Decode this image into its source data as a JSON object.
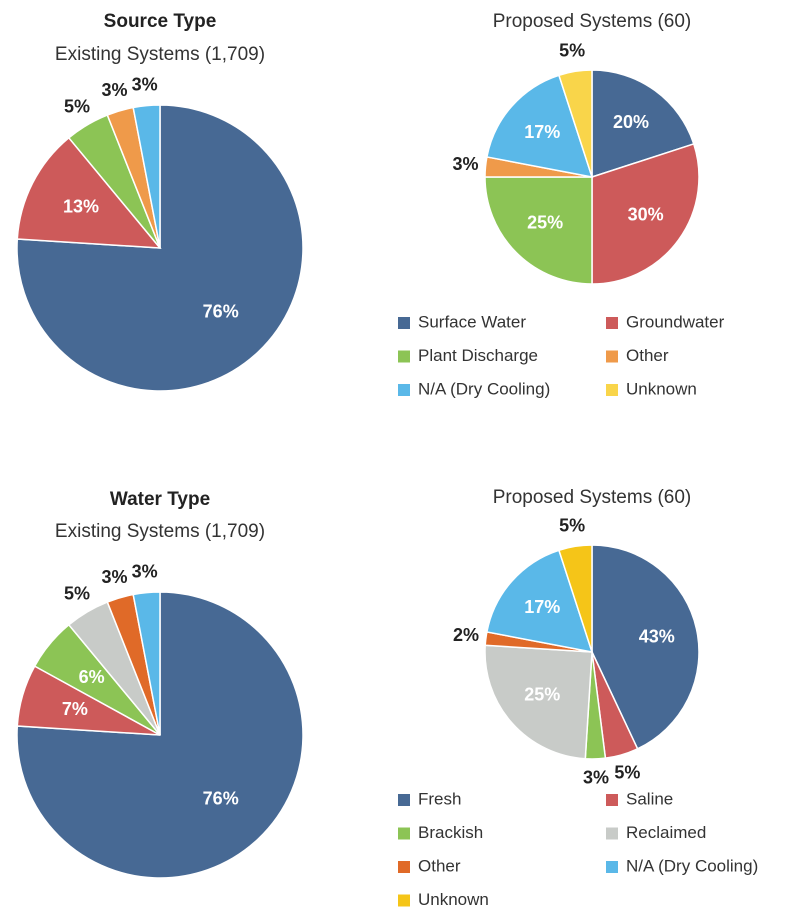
{
  "chart_data": [
    {
      "type": "pie",
      "title": "Source Type",
      "subtitle": "Existing Systems (1,709)",
      "values": [
        76,
        13,
        5,
        3,
        3
      ],
      "value_labels": [
        "76%",
        "13%",
        "5%",
        "3%",
        "3%"
      ],
      "colors": [
        "#476994",
        "#cd5a5a",
        "#8cc455",
        "#ef9a4a",
        "#5ab8e8"
      ]
    },
    {
      "type": "pie",
      "title": "Proposed Systems (60)",
      "categories": [
        "Surface Water",
        "Groundwater",
        "Plant Discharge",
        "Other",
        "N/A (Dry Cooling)",
        "Unknown"
      ],
      "values": [
        20,
        30,
        25,
        3,
        17,
        5
      ],
      "value_labels": [
        "20%",
        "30%",
        "25%",
        "3%",
        "17%",
        "5%"
      ],
      "colors": [
        "#476994",
        "#cd5a5a",
        "#8cc455",
        "#ef9a4a",
        "#5ab8e8",
        "#f9d54a"
      ]
    },
    {
      "type": "pie",
      "title": "Water Type",
      "subtitle": "Existing Systems (1,709)",
      "values": [
        76,
        7,
        6,
        5,
        3,
        3
      ],
      "value_labels": [
        "76%",
        "7%",
        "6%",
        "5%",
        "3%",
        "3%"
      ],
      "colors": [
        "#476994",
        "#cd5a5a",
        "#8cc455",
        "#c8cbc8",
        "#e06a28",
        "#5ab8e8"
      ]
    },
    {
      "type": "pie",
      "title": "Proposed Systems (60)",
      "categories": [
        "Fresh",
        "Saline",
        "Brackish",
        "Reclaimed",
        "Other",
        "N/A (Dry Cooling)",
        "Unknown"
      ],
      "values": [
        43,
        5,
        3,
        25,
        2,
        17,
        5
      ],
      "value_labels": [
        "43%",
        "5%",
        "3%",
        "25%",
        "2%",
        "17%",
        "5%"
      ],
      "colors": [
        "#476994",
        "#cd5a5a",
        "#8cc455",
        "#c8cbc8",
        "#e06a28",
        "#5ab8e8",
        "#f5c518"
      ]
    }
  ]
}
